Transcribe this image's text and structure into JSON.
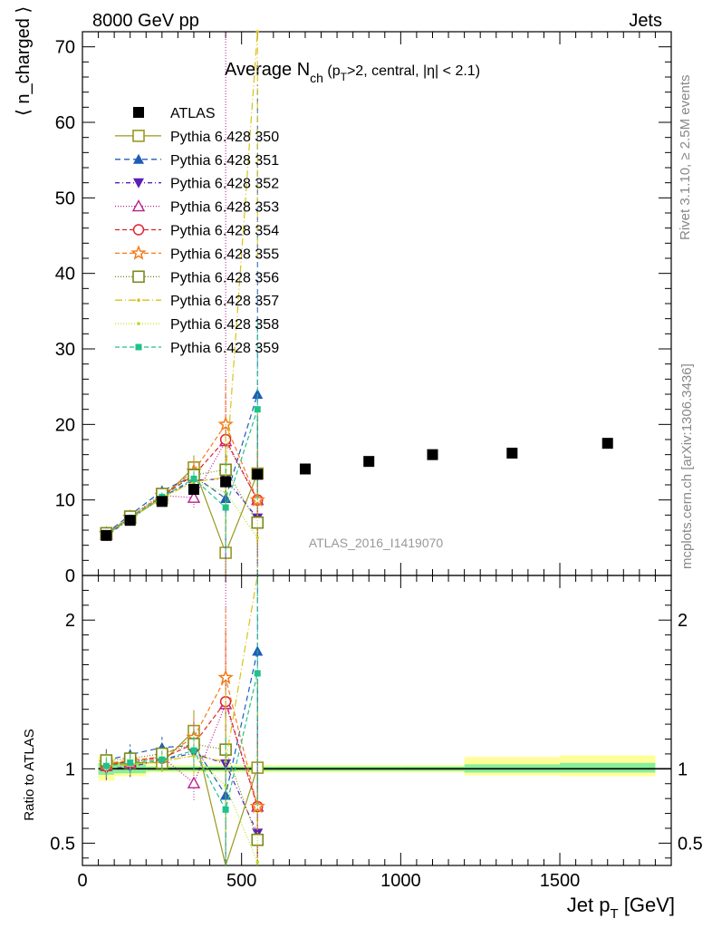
{
  "header": {
    "left": "8000 GeV pp",
    "right": "Jets"
  },
  "side_labels": {
    "rivet": "Rivet 3.1.10, ≥ 2.5M events",
    "mcplots": "mcplots.cern.ch [arXiv:1306.3436]"
  },
  "watermark": "ATLAS_2016_I1419070",
  "chart_data": [
    {
      "type": "scatter",
      "panel": "main",
      "title": "Average N_ch (p_T>2, central, |η| < 2.1)",
      "title_parts": {
        "main": "Average N",
        "sub1": "ch",
        "rest1": " (p",
        "sub2": "T",
        "rest2": ">2, central, |η| < 2.1)"
      },
      "ylabel": "⟨ n_charged ⟩",
      "ylim": [
        0,
        72
      ],
      "yticks": [
        0,
        10,
        20,
        30,
        40,
        50,
        60,
        70
      ],
      "legend_position": "top-left",
      "data": {
        "name": "ATLAS",
        "x": [
          75,
          150,
          250,
          350,
          450,
          550,
          700,
          900,
          1100,
          1350,
          1650
        ],
        "y": [
          5.3,
          7.3,
          9.8,
          11.4,
          12.4,
          13.4,
          14.1,
          15.1,
          16.0,
          16.2,
          17.5
        ]
      },
      "series": [
        {
          "name": "Pythia 6.428 350",
          "color": "#99991f",
          "dash": "",
          "marker": "square-open",
          "x": [
            75,
            150,
            250,
            350,
            450,
            550
          ],
          "y": [
            5.5,
            7.6,
            10.2,
            14.3,
            3.0,
            13.5
          ],
          "err": [
            0.4,
            0.5,
            0.6,
            1.6,
            5.0,
            8.0
          ]
        },
        {
          "name": "Pythia 6.428 351",
          "color": "#1f5cb8",
          "dash": "6,4",
          "marker": "triangle-up",
          "x": [
            75,
            150,
            250,
            350,
            450,
            550
          ],
          "y": [
            5.6,
            8.0,
            11.2,
            13.2,
            10.2,
            24.0
          ],
          "err": [
            0.4,
            0.5,
            0.7,
            1.8,
            8.0,
            41.0
          ]
        },
        {
          "name": "Pythia 6.428 352",
          "color": "#5c1fb8",
          "dash": "5,3,1,3",
          "marker": "triangle-down",
          "x": [
            75,
            150,
            250,
            350,
            450,
            550
          ],
          "y": [
            5.3,
            7.4,
            10.4,
            12.6,
            12.8,
            7.6
          ],
          "err": [
            0.4,
            0.5,
            0.6,
            1.4,
            6.0,
            6.0
          ]
        },
        {
          "name": "Pythia 6.428 353",
          "color": "#b81f8f",
          "dash": "1,2",
          "marker": "triangle-open",
          "x": [
            75,
            150,
            250,
            350,
            450,
            550
          ],
          "y": [
            5.4,
            7.6,
            10.6,
            10.3,
            17.8,
            10.0
          ],
          "err": [
            0.4,
            0.5,
            0.6,
            1.3,
            68.0,
            8.0
          ]
        },
        {
          "name": "Pythia 6.428 354",
          "color": "#e0232e",
          "dash": "5,3",
          "marker": "circle-open",
          "x": [
            75,
            150,
            250,
            350,
            450,
            550
          ],
          "y": [
            5.4,
            7.7,
            10.5,
            13.3,
            18.0,
            10.0
          ],
          "err": [
            0.4,
            0.5,
            0.6,
            1.6,
            6.0,
            6.0
          ]
        },
        {
          "name": "Pythia 6.428 355",
          "color": "#f57a1a",
          "dash": "5,3",
          "marker": "star-open",
          "x": [
            75,
            150,
            250,
            350,
            450,
            550
          ],
          "y": [
            5.5,
            7.7,
            10.6,
            13.8,
            20.0,
            10.0
          ],
          "err": [
            0.4,
            0.5,
            0.6,
            1.6,
            6.0,
            6.0
          ]
        },
        {
          "name": "Pythia 6.428 356",
          "color": "#7a8a1a",
          "dash": "1,2",
          "marker": "square-open",
          "x": [
            75,
            150,
            250,
            350,
            450,
            550
          ],
          "y": [
            5.6,
            7.8,
            10.8,
            13.3,
            14.0,
            7.0
          ],
          "err": [
            0.4,
            0.5,
            0.6,
            1.4,
            6.0,
            6.0
          ]
        },
        {
          "name": "Pythia 6.428 357",
          "color": "#d9c21a",
          "dash": "8,3,1,3",
          "marker": "dot",
          "x": [
            75,
            150,
            250,
            350,
            450,
            550
          ],
          "y": [
            5.4,
            7.5,
            10.3,
            12.4,
            13.0,
            72.0
          ],
          "err": [
            0.4,
            0.5,
            0.6,
            1.4,
            6.0,
            30.0
          ]
        },
        {
          "name": "Pythia 6.428 358",
          "color": "#b8e01f",
          "dash": "1,2",
          "marker": "dot",
          "x": [
            75,
            150,
            250,
            350,
            450,
            550
          ],
          "y": [
            5.4,
            7.5,
            10.3,
            12.4,
            11.0,
            5.0
          ],
          "err": [
            0.4,
            0.5,
            0.6,
            1.4,
            6.0,
            6.0
          ]
        },
        {
          "name": "Pythia 6.428 359",
          "color": "#1fc28a",
          "dash": "5,3",
          "marker": "square-small",
          "x": [
            75,
            150,
            250,
            350,
            450,
            550
          ],
          "y": [
            5.4,
            7.6,
            10.4,
            12.8,
            9.0,
            22.0
          ],
          "err": [
            0.4,
            0.5,
            0.6,
            1.5,
            6.0,
            12.0
          ]
        }
      ]
    },
    {
      "type": "scatter",
      "panel": "ratio",
      "ylabel": "Ratio to ATLAS",
      "xlabel": "Jet p_T [GeV]",
      "xlabel_parts": {
        "main": "Jet p",
        "sub": "T",
        "rest": " [GeV]"
      },
      "xlim": [
        0,
        1850
      ],
      "xticks": [
        0,
        500,
        1000,
        1500
      ],
      "ylim": [
        0.35,
        2.3
      ],
      "yticks": [
        0.5,
        1,
        2
      ],
      "ytick_labels": [
        "0.5",
        "1",
        "2"
      ],
      "bands": [
        {
          "x": [
            50,
            100
          ],
          "inner": [
            0.96,
            1.04
          ],
          "outer": [
            0.92,
            1.08
          ]
        },
        {
          "x": [
            100,
            200
          ],
          "inner": [
            0.97,
            1.03
          ],
          "outer": [
            0.95,
            1.05
          ]
        },
        {
          "x": [
            200,
            300
          ],
          "inner": [
            0.985,
            1.015
          ],
          "outer": [
            0.975,
            1.025
          ]
        },
        {
          "x": [
            300,
            400
          ],
          "inner": [
            0.985,
            1.015
          ],
          "outer": [
            0.975,
            1.025
          ]
        },
        {
          "x": [
            400,
            500
          ],
          "inner": [
            0.985,
            1.015
          ],
          "outer": [
            0.975,
            1.025
          ]
        },
        {
          "x": [
            500,
            600
          ],
          "inner": [
            0.985,
            1.015
          ],
          "outer": [
            0.975,
            1.025
          ]
        },
        {
          "x": [
            600,
            800
          ],
          "inner": [
            0.985,
            1.015
          ],
          "outer": [
            0.975,
            1.025
          ]
        },
        {
          "x": [
            800,
            1000
          ],
          "inner": [
            0.985,
            1.015
          ],
          "outer": [
            0.975,
            1.025
          ]
        },
        {
          "x": [
            1000,
            1200
          ],
          "inner": [
            0.985,
            1.015
          ],
          "outer": [
            0.975,
            1.025
          ]
        },
        {
          "x": [
            1200,
            1500
          ],
          "inner": [
            0.975,
            1.03
          ],
          "outer": [
            0.955,
            1.08
          ]
        },
        {
          "x": [
            1500,
            1800
          ],
          "inner": [
            0.975,
            1.04
          ],
          "outer": [
            0.95,
            1.09
          ]
        }
      ]
    }
  ]
}
